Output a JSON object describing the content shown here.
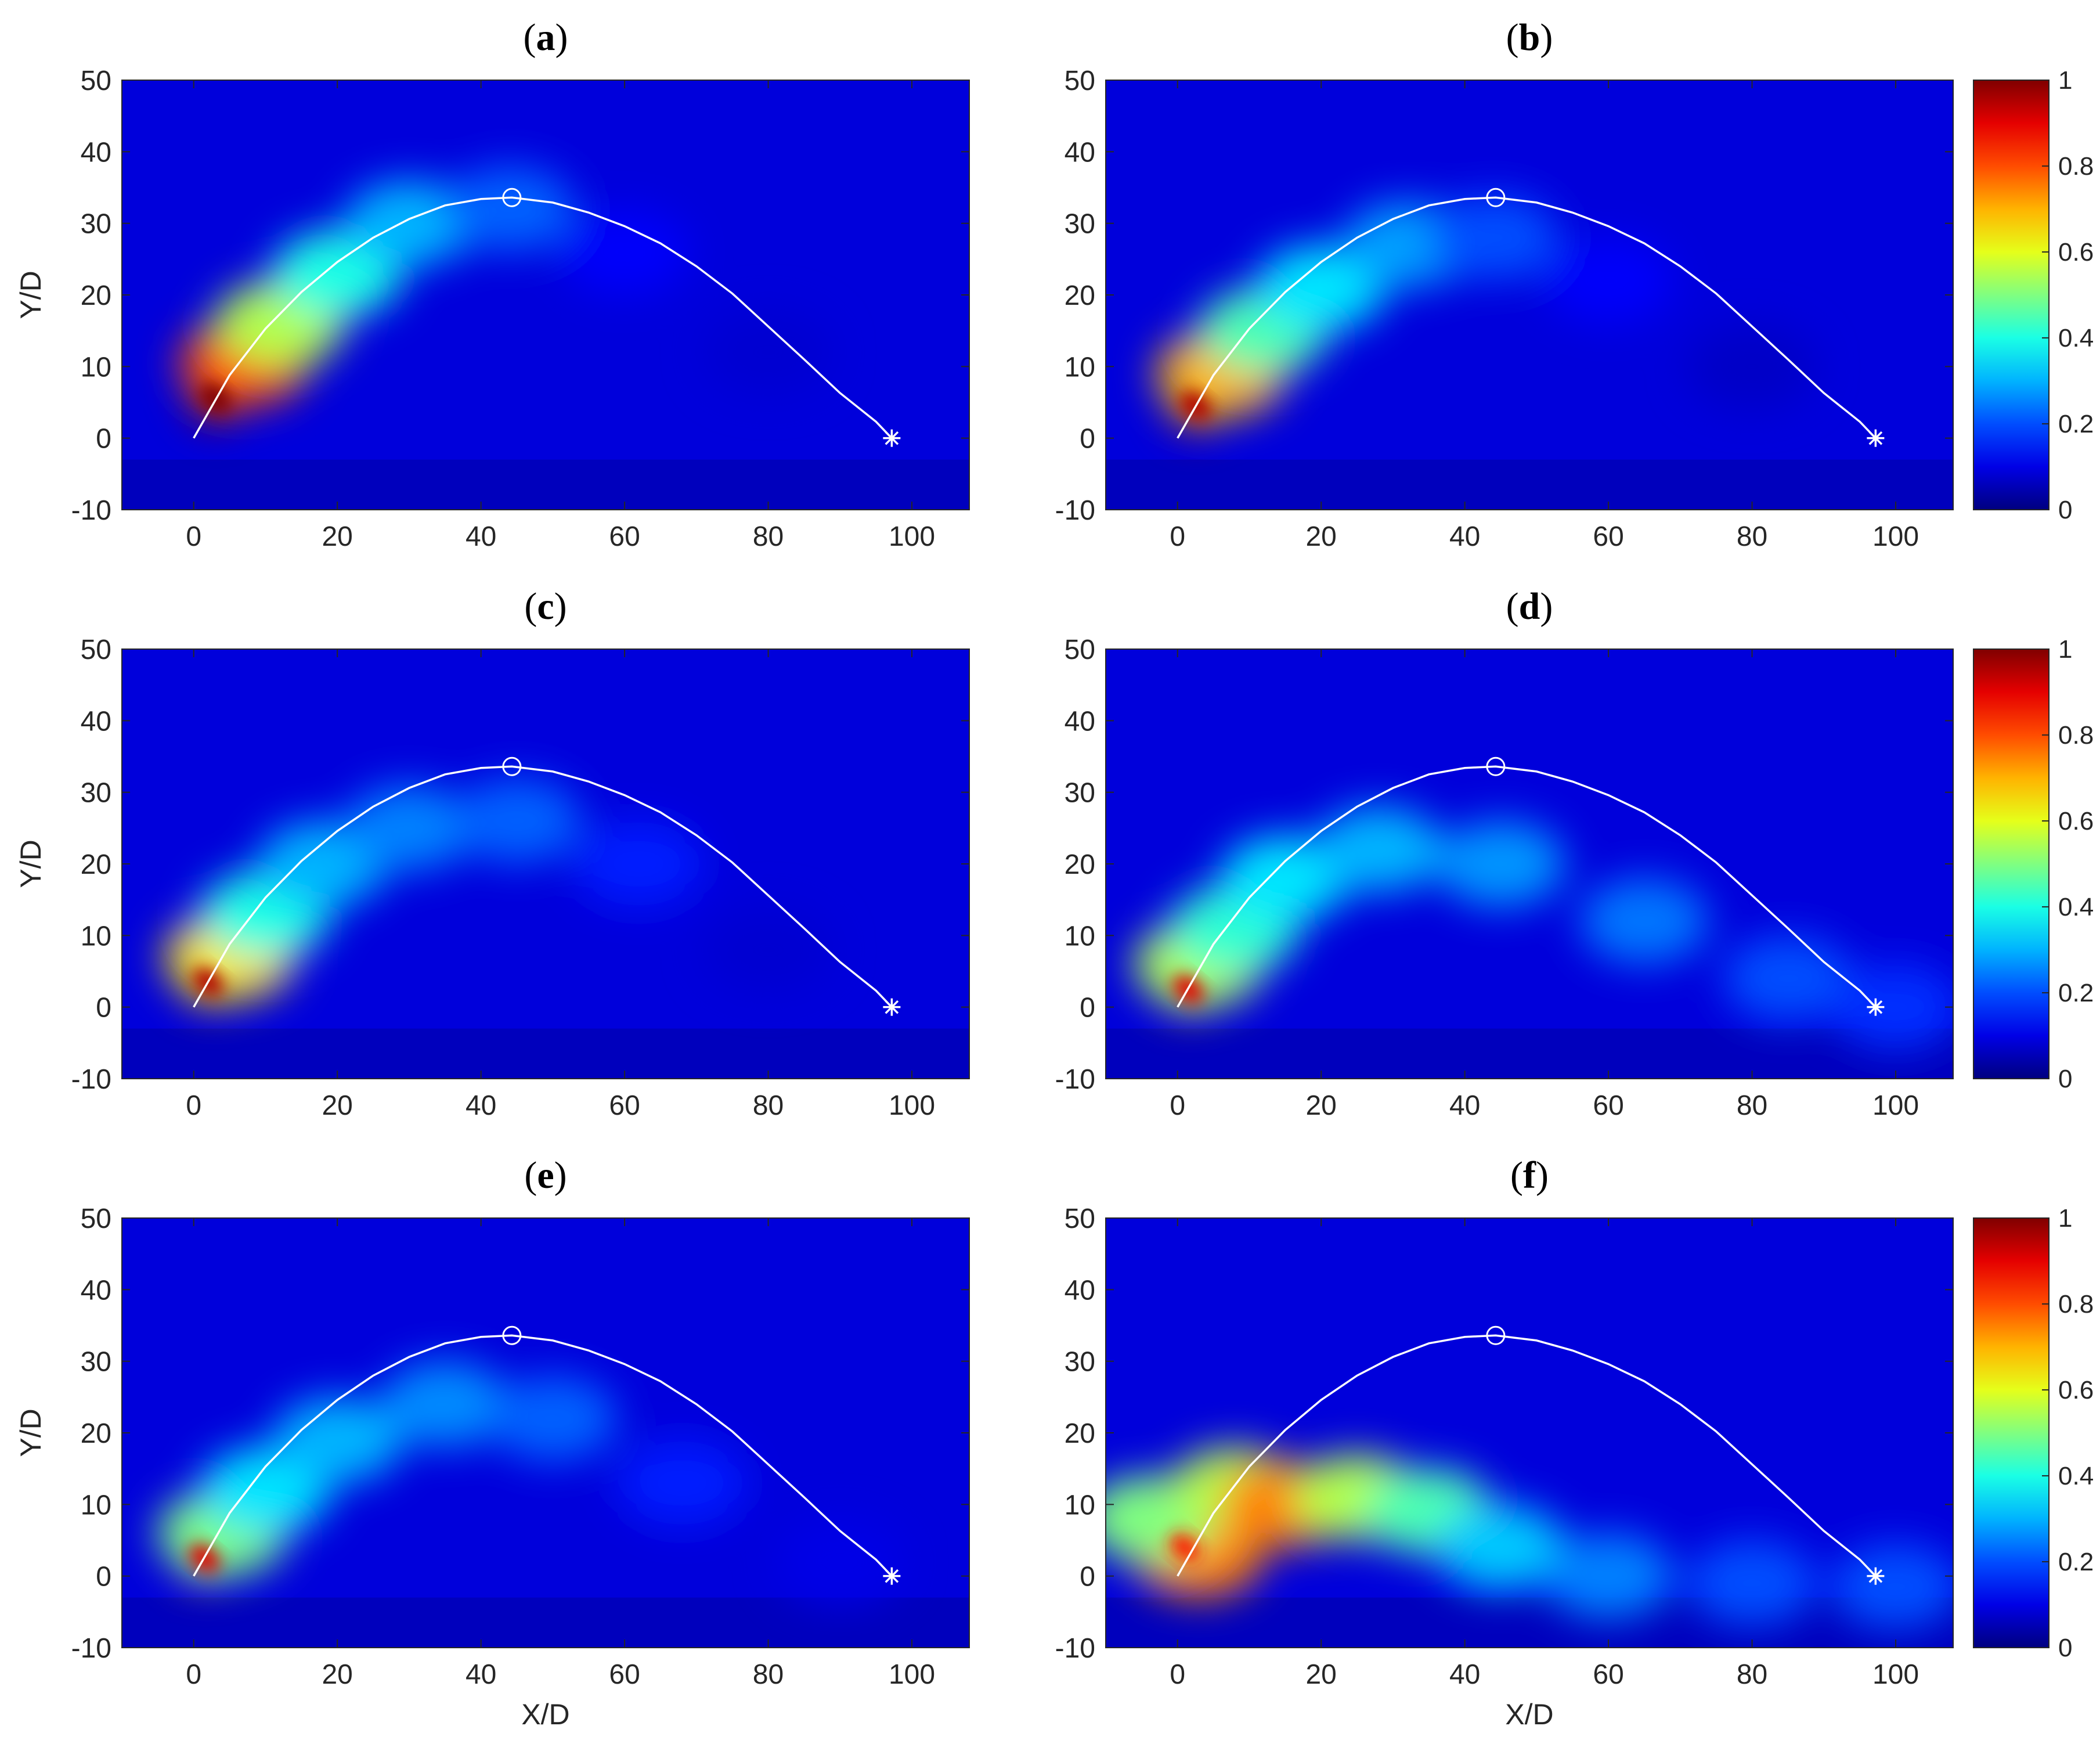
{
  "figure": {
    "panels": [
      "a",
      "b",
      "c",
      "d",
      "e",
      "f"
    ]
  },
  "chart_data": [
    {
      "panel": "a",
      "type": "heatmap",
      "title": "(a)",
      "xlabel": "",
      "ylabel": "Y/D",
      "xlim": [
        -10,
        108
      ],
      "ylim": [
        -10,
        50
      ],
      "xticks": [
        0,
        20,
        40,
        60,
        80,
        100
      ],
      "yticks": [
        -10,
        0,
        10,
        20,
        30,
        40,
        50
      ],
      "clim": [
        0,
        1
      ],
      "colormap": "jet",
      "colorbar": false,
      "trajectory": {
        "x": [
          0,
          5,
          10,
          15,
          20,
          25,
          30,
          35,
          40,
          44.3,
          50,
          55,
          60,
          65,
          70,
          75,
          80,
          85,
          90,
          95,
          97.2
        ],
        "y": [
          0,
          8.8,
          15.3,
          20.4,
          24.6,
          28.0,
          30.6,
          32.5,
          33.4,
          33.6,
          32.9,
          31.5,
          29.6,
          27.2,
          24.0,
          20.2,
          15.6,
          11.0,
          6.3,
          2.3,
          0
        ]
      },
      "markers": [
        {
          "shape": "circle",
          "x": 44.3,
          "y": 33.6
        },
        {
          "shape": "asterisk",
          "x": 97.2,
          "y": 0
        }
      ],
      "plume": [
        {
          "x": 3,
          "y": 5.5,
          "value": 1.0
        },
        {
          "x": 7,
          "y": 10.5,
          "value": 0.8
        },
        {
          "x": 12,
          "y": 16,
          "value": 0.55
        },
        {
          "x": 20,
          "y": 23,
          "value": 0.4
        },
        {
          "x": 30,
          "y": 30,
          "value": 0.3
        },
        {
          "x": 44,
          "y": 32,
          "value": 0.22
        },
        {
          "x": 60,
          "y": 26,
          "value": 0.12
        },
        {
          "x": 80,
          "y": 12,
          "value": 0.08
        }
      ]
    },
    {
      "panel": "b",
      "type": "heatmap",
      "title": "(b)",
      "xlabel": "",
      "ylabel": "",
      "xlim": [
        -10,
        108
      ],
      "ylim": [
        -10,
        50
      ],
      "xticks": [
        0,
        20,
        40,
        60,
        80,
        100
      ],
      "yticks": [
        -10,
        0,
        10,
        20,
        30,
        40,
        50
      ],
      "clim": [
        0,
        1
      ],
      "colormap": "jet",
      "colorbar": true,
      "colorbar_ticks": [
        0,
        0.2,
        0.4,
        0.6,
        0.8,
        1
      ],
      "trajectory": {
        "x": [
          0,
          5,
          10,
          15,
          20,
          25,
          30,
          35,
          40,
          44.3,
          50,
          55,
          60,
          65,
          70,
          75,
          80,
          85,
          90,
          95,
          97.2
        ],
        "y": [
          0,
          8.8,
          15.3,
          20.4,
          24.6,
          28.0,
          30.6,
          32.5,
          33.4,
          33.6,
          32.9,
          31.5,
          29.6,
          27.2,
          24.0,
          20.2,
          15.6,
          11.0,
          6.3,
          2.3,
          0
        ]
      },
      "markers": [
        {
          "shape": "circle",
          "x": 44.3,
          "y": 33.6
        },
        {
          "shape": "asterisk",
          "x": 97.2,
          "y": 0
        }
      ],
      "plume": [
        {
          "x": 2.5,
          "y": 4.5,
          "value": 0.95
        },
        {
          "x": 6,
          "y": 9,
          "value": 0.7
        },
        {
          "x": 12,
          "y": 15,
          "value": 0.45
        },
        {
          "x": 20,
          "y": 21,
          "value": 0.35
        },
        {
          "x": 32,
          "y": 27,
          "value": 0.28
        },
        {
          "x": 44,
          "y": 28,
          "value": 0.2
        },
        {
          "x": 60,
          "y": 22,
          "value": 0.12
        },
        {
          "x": 80,
          "y": 10,
          "value": 0.07
        }
      ]
    },
    {
      "panel": "c",
      "type": "heatmap",
      "title": "(c)",
      "xlabel": "",
      "ylabel": "Y/D",
      "xlim": [
        -10,
        108
      ],
      "ylim": [
        -10,
        50
      ],
      "xticks": [
        0,
        20,
        40,
        60,
        80,
        100
      ],
      "yticks": [
        -10,
        0,
        10,
        20,
        30,
        40,
        50
      ],
      "clim": [
        0,
        1
      ],
      "colormap": "jet",
      "colorbar": false,
      "trajectory": {
        "x": [
          0,
          5,
          10,
          15,
          20,
          25,
          30,
          35,
          40,
          44.3,
          50,
          55,
          60,
          65,
          70,
          75,
          80,
          85,
          90,
          95,
          97.2
        ],
        "y": [
          0,
          8.8,
          15.3,
          20.4,
          24.6,
          28.0,
          30.6,
          32.5,
          33.4,
          33.6,
          32.9,
          31.5,
          29.6,
          27.2,
          24.0,
          20.2,
          15.6,
          11.0,
          6.3,
          2.3,
          0
        ]
      },
      "markers": [
        {
          "shape": "circle",
          "x": 44.3,
          "y": 33.6
        },
        {
          "shape": "asterisk",
          "x": 97.2,
          "y": 0
        }
      ],
      "plume": [
        {
          "x": 2,
          "y": 3.5,
          "value": 0.95
        },
        {
          "x": 5,
          "y": 7,
          "value": 0.65
        },
        {
          "x": 10,
          "y": 13,
          "value": 0.4
        },
        {
          "x": 18,
          "y": 20,
          "value": 0.3
        },
        {
          "x": 30,
          "y": 25,
          "value": 0.25
        },
        {
          "x": 45,
          "y": 26,
          "value": 0.22
        },
        {
          "x": 62,
          "y": 20,
          "value": 0.15
        },
        {
          "x": 80,
          "y": 8,
          "value": 0.08
        }
      ]
    },
    {
      "panel": "d",
      "type": "heatmap",
      "title": "(d)",
      "xlabel": "",
      "ylabel": "",
      "xlim": [
        -10,
        108
      ],
      "ylim": [
        -10,
        50
      ],
      "xticks": [
        0,
        20,
        40,
        60,
        80,
        100
      ],
      "yticks": [
        -10,
        0,
        10,
        20,
        30,
        40,
        50
      ],
      "clim": [
        0,
        1
      ],
      "colormap": "jet",
      "colorbar": true,
      "colorbar_ticks": [
        0,
        0.2,
        0.4,
        0.6,
        0.8,
        1
      ],
      "trajectory": {
        "x": [
          0,
          5,
          10,
          15,
          20,
          25,
          30,
          35,
          40,
          44.3,
          50,
          55,
          60,
          65,
          70,
          75,
          80,
          85,
          90,
          95,
          97.2
        ],
        "y": [
          0,
          8.8,
          15.3,
          20.4,
          24.6,
          28.0,
          30.6,
          32.5,
          33.4,
          33.6,
          32.9,
          31.5,
          29.6,
          27.2,
          24.0,
          20.2,
          15.6,
          11.0,
          6.3,
          2.3,
          0
        ]
      },
      "markers": [
        {
          "shape": "circle",
          "x": 44.3,
          "y": 33.6
        },
        {
          "shape": "asterisk",
          "x": 97.2,
          "y": 0
        }
      ],
      "plume": [
        {
          "x": 1.5,
          "y": 2.5,
          "value": 0.9
        },
        {
          "x": 3,
          "y": 6,
          "value": 0.55
        },
        {
          "x": 8,
          "y": 11,
          "value": 0.42
        },
        {
          "x": 15,
          "y": 18,
          "value": 0.35
        },
        {
          "x": 28,
          "y": 22,
          "value": 0.3
        },
        {
          "x": 45,
          "y": 20,
          "value": 0.27
        },
        {
          "x": 65,
          "y": 12,
          "value": 0.24
        },
        {
          "x": 85,
          "y": 4,
          "value": 0.2
        },
        {
          "x": 100,
          "y": 0,
          "value": 0.17
        }
      ]
    },
    {
      "panel": "e",
      "type": "heatmap",
      "title": "(e)",
      "xlabel": "X/D",
      "ylabel": "Y/D",
      "xlim": [
        -10,
        108
      ],
      "ylim": [
        -10,
        50
      ],
      "xticks": [
        0,
        20,
        40,
        60,
        80,
        100
      ],
      "yticks": [
        -10,
        0,
        10,
        20,
        30,
        40,
        50
      ],
      "clim": [
        0,
        1
      ],
      "colormap": "jet",
      "colorbar": false,
      "trajectory": {
        "x": [
          0,
          5,
          10,
          15,
          20,
          25,
          30,
          35,
          40,
          44.3,
          50,
          55,
          60,
          65,
          70,
          75,
          80,
          85,
          90,
          95,
          97.2
        ],
        "y": [
          0,
          8.8,
          15.3,
          20.4,
          24.6,
          28.0,
          30.6,
          32.5,
          33.4,
          33.6,
          32.9,
          31.5,
          29.6,
          27.2,
          24.0,
          20.2,
          15.6,
          11.0,
          6.3,
          2.3,
          0
        ]
      },
      "markers": [
        {
          "shape": "circle",
          "x": 44.3,
          "y": 33.6
        },
        {
          "shape": "asterisk",
          "x": 97.2,
          "y": 0
        }
      ],
      "plume": [
        {
          "x": 1.5,
          "y": 2.5,
          "value": 0.9
        },
        {
          "x": 4,
          "y": 6,
          "value": 0.5
        },
        {
          "x": 10,
          "y": 12,
          "value": 0.35
        },
        {
          "x": 20,
          "y": 19,
          "value": 0.3
        },
        {
          "x": 35,
          "y": 24,
          "value": 0.26
        },
        {
          "x": 50,
          "y": 22,
          "value": 0.22
        },
        {
          "x": 68,
          "y": 13,
          "value": 0.15
        },
        {
          "x": 90,
          "y": 2,
          "value": 0.1
        }
      ]
    },
    {
      "panel": "f",
      "type": "heatmap",
      "title": "(f)",
      "xlabel": "X/D",
      "ylabel": "",
      "xlim": [
        -10,
        108
      ],
      "ylim": [
        -10,
        50
      ],
      "xticks": [
        0,
        20,
        40,
        60,
        80,
        100
      ],
      "yticks": [
        -10,
        0,
        10,
        20,
        30,
        40,
        50
      ],
      "clim": [
        0,
        1
      ],
      "colormap": "jet",
      "colorbar": true,
      "colorbar_ticks": [
        0,
        0.2,
        0.4,
        0.6,
        0.8,
        1
      ],
      "trajectory": {
        "x": [
          0,
          5,
          10,
          15,
          20,
          25,
          30,
          35,
          40,
          44.3,
          50,
          55,
          60,
          65,
          70,
          75,
          80,
          85,
          90,
          95,
          97.2
        ],
        "y": [
          0,
          8.8,
          15.3,
          20.4,
          24.6,
          28.0,
          30.6,
          32.5,
          33.4,
          33.6,
          32.9,
          31.5,
          29.6,
          27.2,
          24.0,
          20.2,
          15.6,
          11.0,
          6.3,
          2.3,
          0
        ]
      },
      "markers": [
        {
          "shape": "circle",
          "x": 44.3,
          "y": 33.6
        },
        {
          "shape": "asterisk",
          "x": 97.2,
          "y": 0
        }
      ],
      "plume": [
        {
          "x": 1,
          "y": 4,
          "value": 0.85
        },
        {
          "x": 3,
          "y": 3,
          "value": 0.75
        },
        {
          "x": -4,
          "y": 8,
          "value": 0.5
        },
        {
          "x": 8,
          "y": 12,
          "value": 0.55
        },
        {
          "x": 15,
          "y": 10,
          "value": 0.75
        },
        {
          "x": 25,
          "y": 11,
          "value": 0.55
        },
        {
          "x": 35,
          "y": 9,
          "value": 0.45
        },
        {
          "x": 45,
          "y": 4,
          "value": 0.32
        },
        {
          "x": 60,
          "y": 0,
          "value": 0.25
        },
        {
          "x": 80,
          "y": -1,
          "value": 0.2
        },
        {
          "x": 100,
          "y": -1.5,
          "value": 0.2
        }
      ]
    }
  ]
}
